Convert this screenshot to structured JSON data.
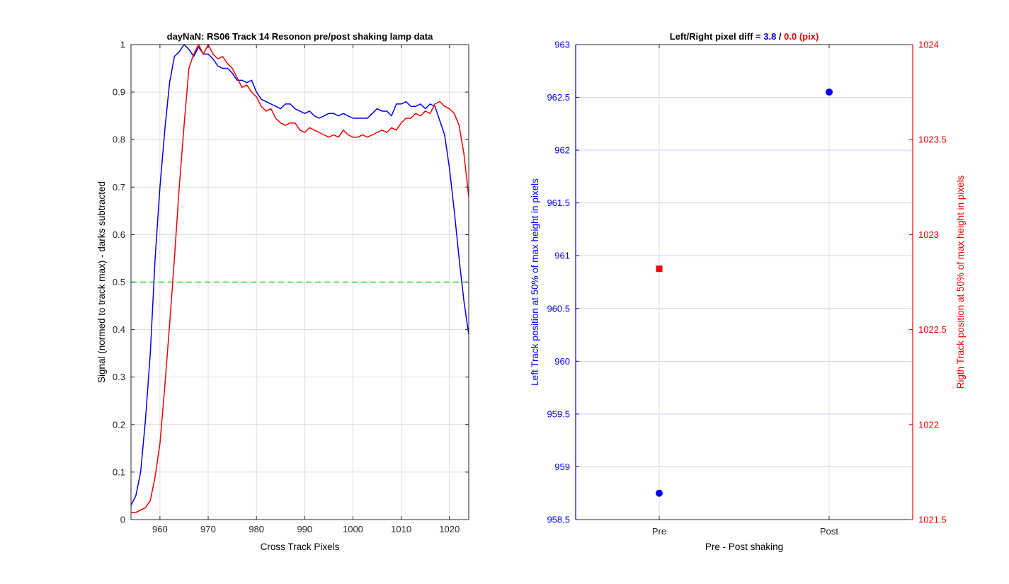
{
  "chart_data": [
    {
      "type": "line",
      "title": "dayNaN: RS06  Track 14 Resonon pre/post shaking lamp data",
      "xlabel": "Cross Track Pixels",
      "ylabel": "Signal (normed to track max) - darks subtracted",
      "xlim": [
        954,
        1024
      ],
      "ylim": [
        0,
        1
      ],
      "xticks": [
        960,
        970,
        980,
        990,
        1000,
        1010,
        1020
      ],
      "yticks": [
        0,
        0.1,
        0.2,
        0.3,
        0.4,
        0.5,
        0.6,
        0.7,
        0.8,
        0.9,
        1
      ],
      "grid": true,
      "legend": "none",
      "reference_line": {
        "y": 0.5,
        "color": "#22dd22",
        "style": "dashed"
      },
      "x": [
        954,
        955,
        956,
        957,
        958,
        959,
        960,
        961,
        962,
        963,
        964,
        965,
        966,
        967,
        968,
        969,
        970,
        971,
        972,
        973,
        974,
        975,
        976,
        977,
        978,
        979,
        980,
        981,
        982,
        983,
        984,
        985,
        986,
        987,
        988,
        989,
        990,
        991,
        992,
        993,
        994,
        995,
        996,
        997,
        998,
        999,
        1000,
        1001,
        1002,
        1003,
        1004,
        1005,
        1006,
        1007,
        1008,
        1009,
        1010,
        1011,
        1012,
        1013,
        1014,
        1015,
        1016,
        1017,
        1018,
        1019,
        1020,
        1021,
        1022,
        1023,
        1024
      ],
      "series": [
        {
          "color": "#0000ee",
          "values": [
            0.03,
            0.05,
            0.1,
            0.21,
            0.35,
            0.55,
            0.7,
            0.82,
            0.92,
            0.975,
            0.985,
            1.0,
            0.99,
            0.975,
            0.995,
            0.98,
            0.98,
            0.97,
            0.955,
            0.95,
            0.95,
            0.94,
            0.925,
            0.925,
            0.92,
            0.925,
            0.9,
            0.885,
            0.88,
            0.875,
            0.87,
            0.865,
            0.875,
            0.875,
            0.865,
            0.86,
            0.855,
            0.86,
            0.85,
            0.845,
            0.85,
            0.855,
            0.855,
            0.85,
            0.855,
            0.85,
            0.845,
            0.845,
            0.845,
            0.845,
            0.855,
            0.865,
            0.86,
            0.86,
            0.85,
            0.875,
            0.875,
            0.88,
            0.87,
            0.87,
            0.875,
            0.865,
            0.875,
            0.87,
            0.84,
            0.81,
            0.74,
            0.65,
            0.55,
            0.46,
            0.39
          ]
        },
        {
          "color": "#ee0000",
          "values": [
            0.015,
            0.015,
            0.02,
            0.025,
            0.04,
            0.09,
            0.16,
            0.28,
            0.41,
            0.55,
            0.7,
            0.83,
            0.95,
            0.98,
            1.0,
            0.98,
            1.0,
            0.98,
            0.97,
            0.975,
            0.96,
            0.95,
            0.93,
            0.91,
            0.915,
            0.9,
            0.89,
            0.87,
            0.86,
            0.865,
            0.845,
            0.835,
            0.83,
            0.835,
            0.835,
            0.82,
            0.815,
            0.825,
            0.82,
            0.815,
            0.81,
            0.805,
            0.81,
            0.805,
            0.82,
            0.81,
            0.805,
            0.805,
            0.81,
            0.805,
            0.81,
            0.815,
            0.82,
            0.815,
            0.825,
            0.82,
            0.835,
            0.845,
            0.845,
            0.855,
            0.85,
            0.86,
            0.855,
            0.875,
            0.88,
            0.87,
            0.865,
            0.855,
            0.83,
            0.77,
            0.68
          ]
        }
      ]
    },
    {
      "type": "scatter",
      "title_parts": [
        "Left/Right pixel diff = ",
        "3.8",
        " / ",
        "0.0 (pix)"
      ],
      "title_colors": [
        "#000000",
        "#0000ee",
        "#000000",
        "#ee0000"
      ],
      "xlabel": "Pre - Post shaking",
      "ylabel": "Left Track position at 50% of max height in pixels",
      "ylabel_right": "Rigth Track position at 50% of max height in pixels",
      "categories": [
        "Pre",
        "Post"
      ],
      "ylim": [
        958.5,
        963
      ],
      "yticks": [
        958.5,
        959,
        959.5,
        960,
        960.5,
        961,
        961.5,
        962,
        962.5,
        963
      ],
      "ylim_right": [
        1021.5,
        1024
      ],
      "yticks_right": [
        1021.5,
        1022,
        1022.5,
        1023,
        1023.5,
        1024
      ],
      "grid": true,
      "legend": "none",
      "series": [
        {
          "axis": "left",
          "marker": "circle",
          "color": "#0000ee",
          "values": [
            958.75,
            962.55
          ]
        },
        {
          "axis": "right",
          "marker": "square",
          "color": "#ee0000",
          "values": [
            1022.82,
            null
          ]
        }
      ]
    }
  ]
}
